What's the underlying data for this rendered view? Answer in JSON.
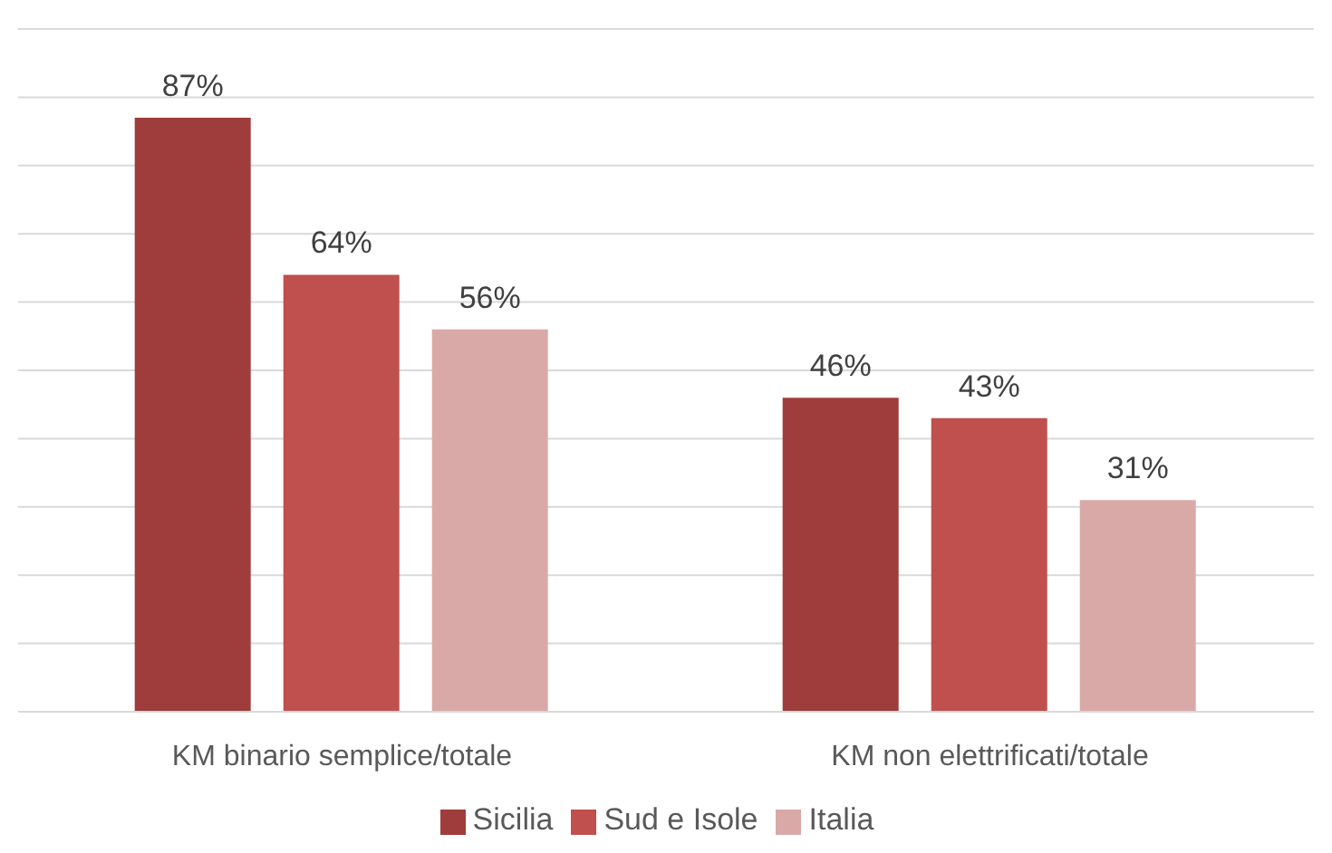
{
  "chart_data": {
    "type": "bar",
    "categories": [
      "KM binario semplice/totale",
      "KM non elettrificati/totale"
    ],
    "series": [
      {
        "name": "Sicilia",
        "color": "#9e3d3b",
        "values": [
          87,
          46
        ],
        "value_labels": [
          "87%",
          "46%"
        ]
      },
      {
        "name": "Sud e Isole",
        "color": "#c0504d",
        "values": [
          64,
          43
        ],
        "value_labels": [
          "64%",
          "43%"
        ]
      },
      {
        "name": "Italia",
        "color": "#d9a9a8",
        "values": [
          56,
          31
        ],
        "value_labels": [
          "56%",
          "31%"
        ]
      }
    ],
    "ylim": [
      0,
      100
    ],
    "yticks": [
      {
        "value": 0,
        "label": null
      },
      {
        "value": 10,
        "label": null
      },
      {
        "value": 20,
        "label": null
      },
      {
        "value": 30,
        "label": null
      },
      {
        "value": 40,
        "label": null
      },
      {
        "value": 50,
        "label": null
      },
      {
        "value": 60,
        "label": null
      },
      {
        "value": 70,
        "label": null
      },
      {
        "value": 80,
        "label": null
      },
      {
        "value": 90,
        "label": null
      },
      {
        "value": 100,
        "label": null
      }
    ],
    "grid": "y",
    "legend": "bottom",
    "tick_labels": "x"
  }
}
